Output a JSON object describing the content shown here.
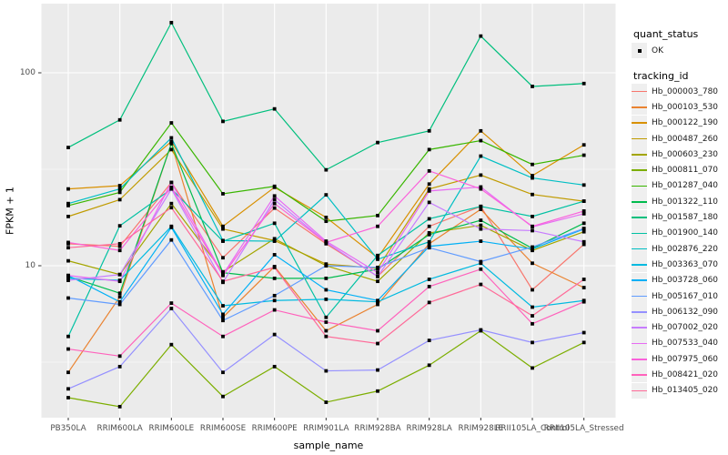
{
  "figure": {
    "bg": "#FFFFFF",
    "panel_bg": "#EBEBEB",
    "grid_color": "#FFFFFF",
    "tick_color": "#333333",
    "marker_color": "#000000"
  },
  "axes": {
    "y": {
      "title": "FPKM + 1",
      "scale": "log10",
      "ticks": [
        {
          "label": "100",
          "value": 100
        },
        {
          "label": "10",
          "value": 10
        }
      ]
    },
    "x": {
      "title": "sample_name"
    }
  },
  "legend": {
    "quant_status": {
      "title": "quant_status",
      "items": [
        {
          "label": "OK",
          "marker": "black-square"
        }
      ]
    },
    "tracking_id": {
      "title": "tracking_id"
    }
  },
  "chart_data": {
    "type": "line",
    "title": "",
    "xlabel": "sample_name",
    "ylabel": "FPKM + 1",
    "yscale": "log10",
    "ylim": [
      1.63,
      215
    ],
    "grid": true,
    "legend_position": "right",
    "categories": [
      "PB350LA",
      "RRIM600LA",
      "RRIM600LE",
      "RRIM600SE",
      "RRIM600PE",
      "RRIM901LA",
      "RRIM928BA",
      "RRIM928LA",
      "RRIM928LE",
      "RRII105LA_Control",
      "RRII105LA_Stressed"
    ],
    "series": [
      {
        "name": "Hb_000003_780",
        "color": "#F8766D",
        "values": [
          13.0,
          12.6,
          27.0,
          11.0,
          19.9,
          13.0,
          8.8,
          16.0,
          20.3,
          7.5,
          12.9
        ]
      },
      {
        "name": "Hb_000103_530",
        "color": "#EA8331",
        "values": [
          2.8,
          6.9,
          43.0,
          5.4,
          9.9,
          4.6,
          6.3,
          13.0,
          19.6,
          10.3,
          7.7
        ]
      },
      {
        "name": "Hb_000122_190",
        "color": "#D89000",
        "values": [
          25.0,
          26.0,
          44.0,
          16.0,
          25.5,
          17.8,
          11.0,
          26.5,
          50.0,
          29.3,
          42.3
        ]
      },
      {
        "name": "Hb_000487_260",
        "color": "#C09B00",
        "values": [
          18.0,
          22.0,
          40.0,
          15.5,
          13.5,
          10.2,
          9.7,
          25.0,
          29.5,
          23.4,
          21.6
        ]
      },
      {
        "name": "Hb_000603_230",
        "color": "#A3A500",
        "values": [
          10.6,
          9.0,
          21.0,
          9.3,
          13.8,
          10.0,
          8.3,
          14.8,
          16.2,
          12.0,
          15.0
        ]
      },
      {
        "name": "Hb_000811_070",
        "color": "#7CAE00",
        "values": [
          2.07,
          1.86,
          3.9,
          2.1,
          3.0,
          1.96,
          2.24,
          3.05,
          4.6,
          2.95,
          4.0
        ]
      },
      {
        "name": "Hb_001287_040",
        "color": "#39B600",
        "values": [
          20.5,
          24.0,
          55.0,
          23.6,
          25.8,
          17.0,
          18.2,
          40.0,
          44.5,
          33.5,
          37.4
        ]
      },
      {
        "name": "Hb_001322_110",
        "color": "#00BB4E",
        "values": [
          8.8,
          7.2,
          43.0,
          9.2,
          8.6,
          8.6,
          9.6,
          14.5,
          17.2,
          12.3,
          16.6
        ]
      },
      {
        "name": "Hb_001587_180",
        "color": "#00BF7D",
        "values": [
          41.0,
          57.0,
          182.0,
          56.0,
          65.0,
          31.4,
          43.5,
          50.0,
          155.0,
          85.0,
          88.0
        ]
      },
      {
        "name": "Hb_001900_140",
        "color": "#00C1A3",
        "values": [
          4.3,
          16.1,
          25.0,
          13.4,
          16.6,
          5.4,
          11.3,
          17.5,
          20.3,
          18.0,
          21.6
        ]
      },
      {
        "name": "Hb_002876_220",
        "color": "#00BFC4",
        "values": [
          21.0,
          25.0,
          46.0,
          13.5,
          13.4,
          23.3,
          10.8,
          13.3,
          37.0,
          28.5,
          26.2
        ]
      },
      {
        "name": "Hb_003363_070",
        "color": "#00BAE0",
        "values": [
          8.6,
          8.4,
          16.0,
          6.2,
          6.6,
          6.7,
          6.5,
          8.5,
          10.3,
          6.1,
          6.6
        ]
      },
      {
        "name": "Hb_003728_060",
        "color": "#00B0F6",
        "values": [
          8.9,
          6.5,
          15.8,
          5.6,
          11.4,
          7.5,
          6.6,
          12.6,
          13.4,
          12.2,
          15.5
        ]
      },
      {
        "name": "Hb_005167_010",
        "color": "#619CFF",
        "values": [
          6.8,
          6.3,
          13.6,
          5.2,
          7.0,
          10.0,
          9.8,
          12.4,
          10.5,
          12.5,
          15.6
        ]
      },
      {
        "name": "Hb_006132_090",
        "color": "#9590FF",
        "values": [
          2.3,
          3.0,
          6.0,
          2.8,
          4.4,
          2.85,
          2.88,
          4.1,
          4.65,
          4.0,
          4.5
        ]
      },
      {
        "name": "Hb_007002_020",
        "color": "#C77CFF",
        "values": [
          8.4,
          9.0,
          25.0,
          8.2,
          22.0,
          13.2,
          8.8,
          21.3,
          15.5,
          15.2,
          13.3
        ]
      },
      {
        "name": "Hb_007533_040",
        "color": "#E76BF3",
        "values": [
          8.9,
          8.3,
          27.0,
          9.0,
          23.0,
          13.4,
          9.2,
          24.4,
          25.6,
          15.9,
          18.6
        ]
      },
      {
        "name": "Hb_007975_060",
        "color": "#FA62DB",
        "values": [
          13.2,
          12.0,
          25.5,
          8.9,
          21.0,
          13.2,
          16.0,
          31.0,
          25.0,
          16.0,
          19.2
        ]
      },
      {
        "name": "Hb_008421_020",
        "color": "#FF62BC",
        "values": [
          3.7,
          3.4,
          6.4,
          4.3,
          5.9,
          5.1,
          4.6,
          7.8,
          9.6,
          5.0,
          6.5
        ]
      },
      {
        "name": "Hb_013405_020",
        "color": "#FF6A98",
        "values": [
          12.4,
          13.0,
          20.0,
          8.3,
          9.8,
          4.3,
          3.95,
          6.45,
          8.0,
          5.5,
          8.5
        ]
      }
    ]
  }
}
